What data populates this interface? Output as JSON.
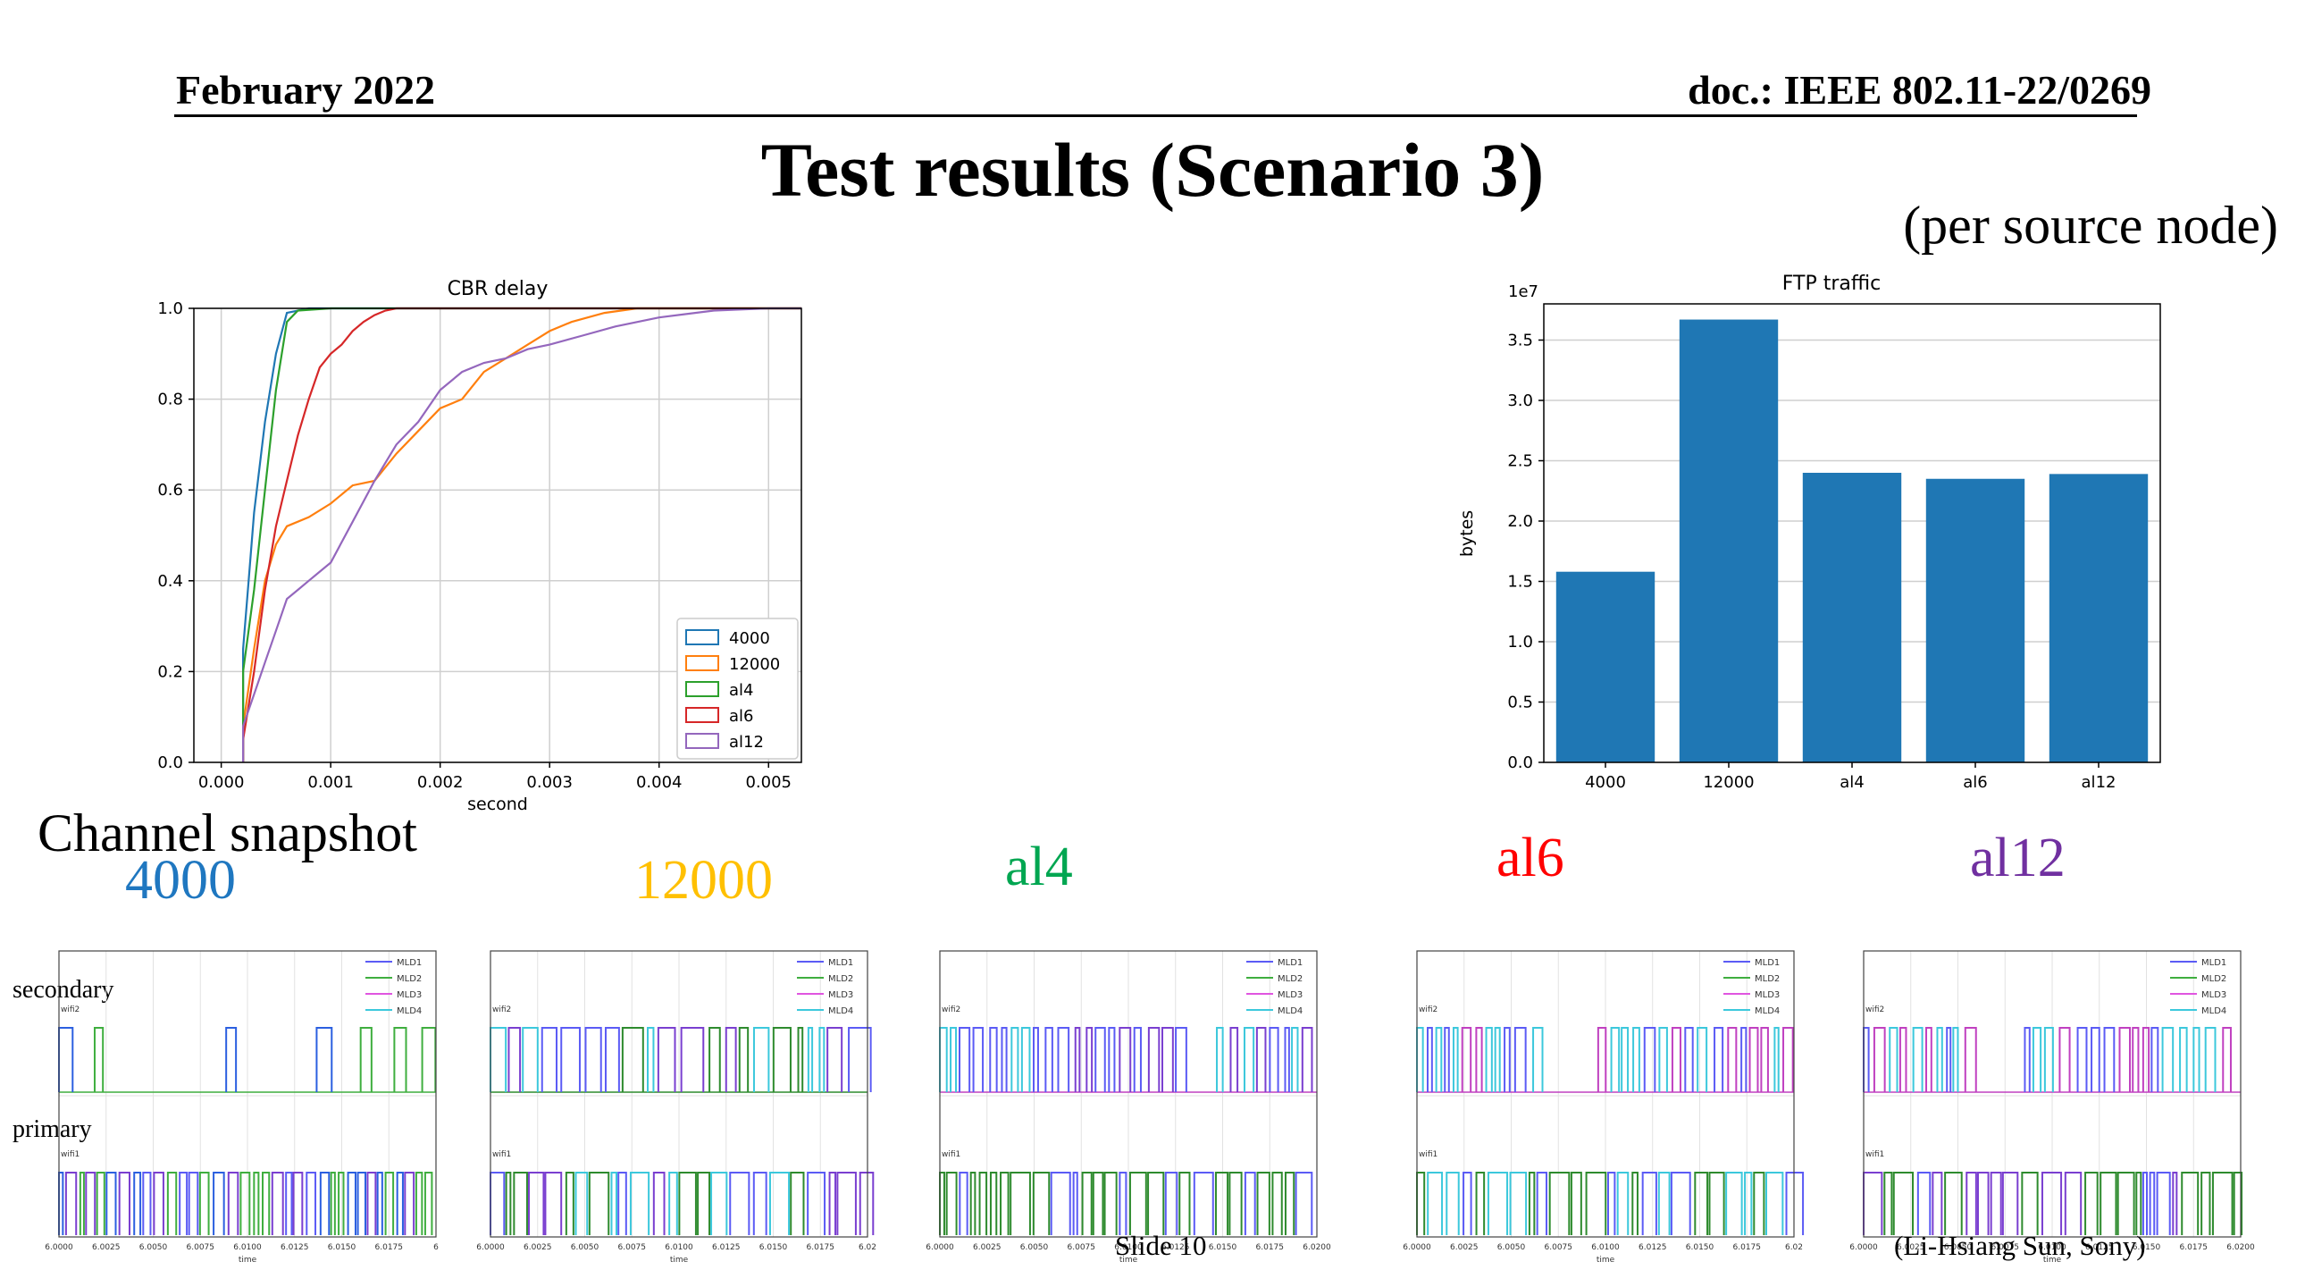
{
  "header": {
    "date": "February 2022",
    "doc": "doc.: IEEE 802.11-22/0269"
  },
  "slide": {
    "title": "Test results (Scenario 3)",
    "subtitle": "(per source node)",
    "channel_label": "Channel snapshot",
    "side_secondary": "secondary",
    "side_primary": "primary",
    "footer_center": "Slide 10",
    "footer_right": "(Li-Hsiang Sun, Sony)"
  },
  "colors": {
    "4000": "#1f77b4",
    "12000": "#ff7f0e",
    "al4": "#2ca02c",
    "al6": "#d62728",
    "al12": "#9467bd",
    "label_4000": "#1f77c0",
    "label_12000": "#ffc000",
    "label_al4": "#00a651",
    "label_al6": "#ff0000",
    "label_al12": "#7030a0",
    "bar": "#1f77b4"
  },
  "snapshot_labels": [
    "4000",
    "12000",
    "al4",
    "al6",
    "al12"
  ],
  "snapshot_legend": [
    "MLD1",
    "MLD2",
    "MLD3",
    "MLD4"
  ],
  "snapshot_top_label": "wifi2",
  "snapshot_bottom_label": "wifi1",
  "snapshot_xlabel": "time",
  "snapshot_ticks_short": [
    "6.0000",
    "6.0025",
    "6.0050",
    "6.0075",
    "6.0100",
    "6.0125",
    "6.0150",
    "6.0175",
    "6"
  ],
  "snapshot_ticks_b": [
    "6.0000",
    "6.0025",
    "6.0050",
    "6.0075",
    "6.0100",
    "6.0125",
    "6.0150",
    "6.0175",
    "6.02"
  ],
  "snapshot_ticks_full": [
    "6.0000",
    "6.0025",
    "6.0050",
    "6.0075",
    "6.0100",
    "6.0125",
    "6.0150",
    "6.0175",
    "6.0200"
  ],
  "chart_data": [
    {
      "type": "line",
      "title": "CBR delay",
      "xlabel": "second",
      "ylabel": "",
      "xlim": [
        -0.00025,
        0.0053
      ],
      "ylim": [
        0,
        1.0
      ],
      "xticks": [
        "0.000",
        "0.001",
        "0.002",
        "0.003",
        "0.004",
        "0.005"
      ],
      "yticks": [
        "0.0",
        "0.2",
        "0.4",
        "0.6",
        "0.8",
        "1.0"
      ],
      "grid": true,
      "legend_position": "lower-right",
      "series": [
        {
          "name": "4000",
          "x": [
            0.0002,
            0.0002,
            0.00025,
            0.0003,
            0.0004,
            0.0005,
            0.0006,
            0.0008,
            0.0012,
            0.0053
          ],
          "y": [
            0.0,
            0.25,
            0.4,
            0.55,
            0.75,
            0.9,
            0.99,
            1.0,
            1.0,
            1.0
          ]
        },
        {
          "name": "12000",
          "x": [
            0.0002,
            0.0002,
            0.0003,
            0.0004,
            0.0005,
            0.0006,
            0.0008,
            0.001,
            0.0012,
            0.0014,
            0.0016,
            0.0018,
            0.002,
            0.0022,
            0.0024,
            0.0026,
            0.0028,
            0.003,
            0.0032,
            0.0035,
            0.0038,
            0.0053
          ],
          "y": [
            0.0,
            0.08,
            0.25,
            0.4,
            0.48,
            0.52,
            0.54,
            0.57,
            0.61,
            0.62,
            0.68,
            0.73,
            0.78,
            0.8,
            0.86,
            0.89,
            0.92,
            0.95,
            0.97,
            0.99,
            1.0,
            1.0
          ]
        },
        {
          "name": "al4",
          "x": [
            0.0002,
            0.0002,
            0.0003,
            0.0004,
            0.0005,
            0.0006,
            0.0007,
            0.001,
            0.0053
          ],
          "y": [
            0.0,
            0.2,
            0.38,
            0.6,
            0.82,
            0.97,
            0.995,
            1.0,
            1.0
          ]
        },
        {
          "name": "al6",
          "x": [
            0.0002,
            0.0002,
            0.0003,
            0.0004,
            0.0005,
            0.0006,
            0.0007,
            0.0008,
            0.0009,
            0.001,
            0.0011,
            0.0012,
            0.0013,
            0.0014,
            0.0015,
            0.0016,
            0.0018,
            0.002,
            0.0053
          ],
          "y": [
            0.0,
            0.05,
            0.2,
            0.38,
            0.52,
            0.62,
            0.72,
            0.8,
            0.87,
            0.9,
            0.92,
            0.95,
            0.97,
            0.985,
            0.995,
            1.0,
            1.0,
            1.0,
            1.0
          ]
        },
        {
          "name": "al12",
          "x": [
            0.0002,
            0.0002,
            0.0003,
            0.0004,
            0.0005,
            0.0006,
            0.0007,
            0.0008,
            0.0009,
            0.001,
            0.0012,
            0.0014,
            0.0016,
            0.0018,
            0.002,
            0.0022,
            0.0024,
            0.0026,
            0.0028,
            0.003,
            0.0033,
            0.0036,
            0.004,
            0.0045,
            0.005,
            0.0053
          ],
          "y": [
            0.0,
            0.08,
            0.15,
            0.22,
            0.29,
            0.36,
            0.38,
            0.4,
            0.42,
            0.44,
            0.53,
            0.62,
            0.7,
            0.75,
            0.82,
            0.86,
            0.88,
            0.89,
            0.91,
            0.92,
            0.94,
            0.96,
            0.98,
            0.995,
            1.0,
            1.0
          ]
        }
      ]
    },
    {
      "type": "bar",
      "title": "FTP traffic",
      "xlabel": "",
      "ylabel": "bytes",
      "scale_label": "1e7",
      "categories": [
        "4000",
        "12000",
        "al4",
        "al6",
        "al12"
      ],
      "values": [
        1.58,
        3.67,
        2.4,
        2.35,
        2.39
      ],
      "ylim": [
        0,
        3.8
      ],
      "yticks": [
        "0.0",
        "0.5",
        "1.0",
        "1.5",
        "2.0",
        "2.5",
        "3.0",
        "3.5"
      ],
      "grid": true
    }
  ]
}
